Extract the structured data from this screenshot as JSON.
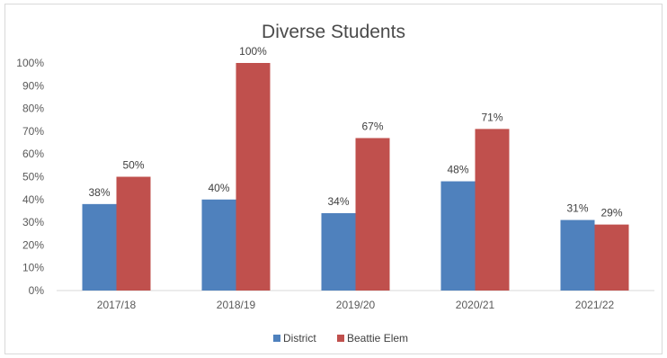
{
  "chart_data": {
    "type": "bar",
    "title": "Diverse Students",
    "xlabel": "",
    "ylabel": "",
    "categories": [
      "2017/18",
      "2018/19",
      "2019/20",
      "2020/21",
      "2021/22"
    ],
    "series": [
      {
        "name": "District",
        "values": [
          38,
          40,
          34,
          48,
          31
        ],
        "labels": [
          "38%",
          "40%",
          "34%",
          "48%",
          "31%"
        ],
        "color": "#4f81bd"
      },
      {
        "name": "Beattie Elem",
        "values": [
          50,
          100,
          67,
          71,
          29
        ],
        "labels": [
          "50%",
          "100%",
          "67%",
          "71%",
          "29%"
        ],
        "color": "#c0504d"
      }
    ],
    "ylim": [
      0,
      100
    ],
    "yticks": [
      0,
      10,
      20,
      30,
      40,
      50,
      60,
      70,
      80,
      90,
      100
    ],
    "ytick_labels": [
      "0%",
      "10%",
      "20%",
      "30%",
      "40%",
      "50%",
      "60%",
      "70%",
      "80%",
      "90%",
      "100%"
    ],
    "grid": false,
    "legend_position": "bottom"
  }
}
